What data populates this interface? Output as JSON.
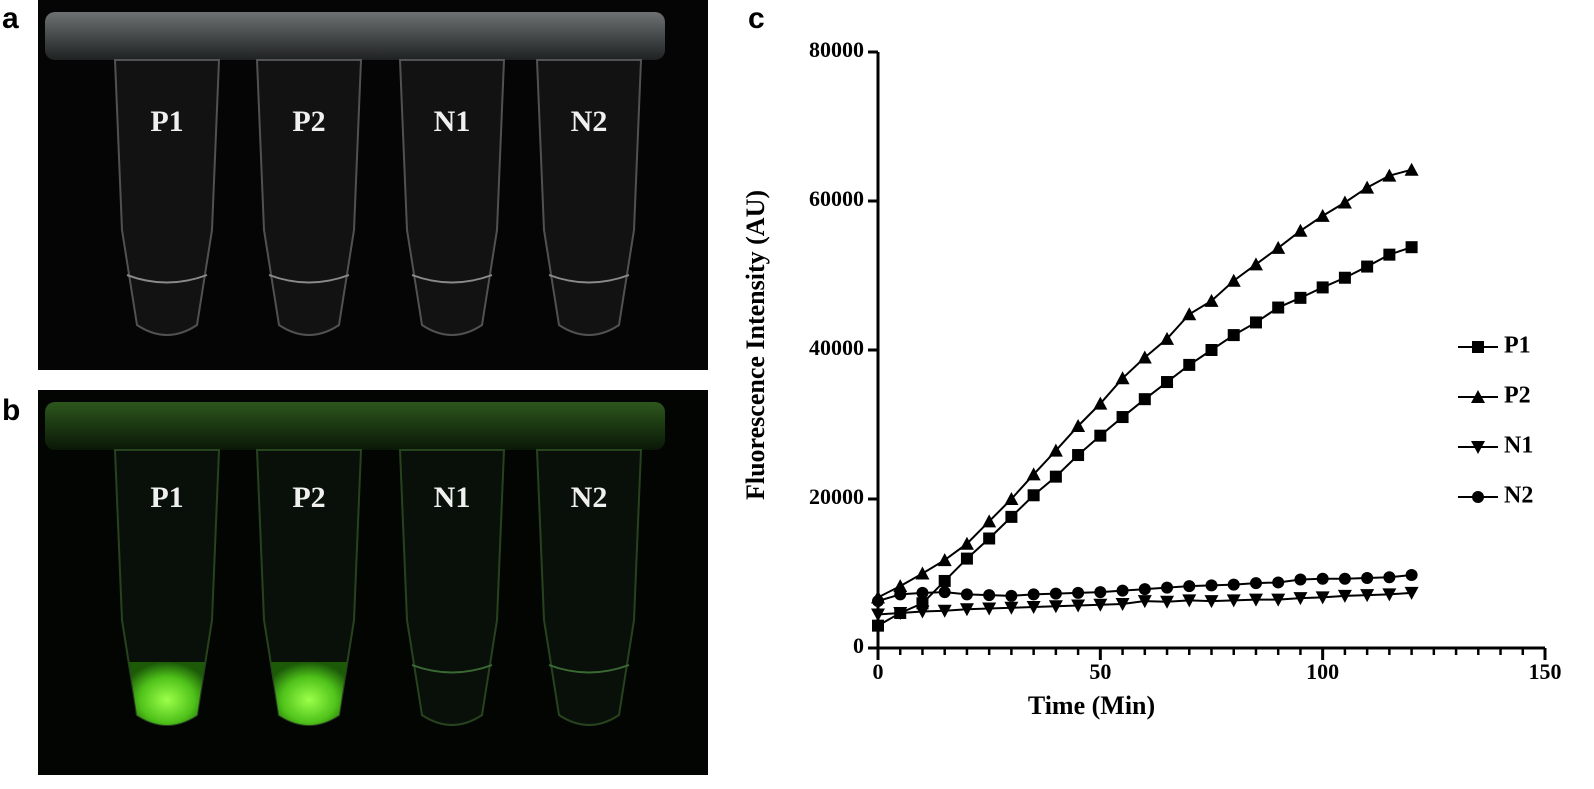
{
  "panels": [
    {
      "label": "a",
      "tubes": [
        "P1",
        "P2",
        "N1",
        "N2"
      ]
    },
    {
      "label": "b",
      "tubes": [
        "P1",
        "P2",
        "N1",
        "N2"
      ]
    }
  ],
  "chart_label": "c",
  "chart_data": {
    "type": "line",
    "xlabel": "Time (Min)",
    "ylabel": "Fluorescence Intensity (AU)",
    "x": [
      0,
      5,
      10,
      15,
      20,
      25,
      30,
      35,
      40,
      45,
      50,
      55,
      60,
      65,
      70,
      75,
      80,
      85,
      90,
      95,
      100,
      105,
      110,
      115,
      120
    ],
    "series": [
      {
        "name": "P1",
        "color": "#000000",
        "marker": "square",
        "values": [
          3000,
          4700,
          6000,
          9000,
          12000,
          14700,
          17600,
          20500,
          23000,
          25900,
          28500,
          31000,
          33400,
          35700,
          38000,
          40000,
          42000,
          43700,
          45700,
          47000,
          48400,
          49700,
          51200,
          52800,
          53800
        ]
      },
      {
        "name": "P2",
        "color": "#000000",
        "marker": "triangle-up",
        "values": [
          6800,
          8300,
          10000,
          11800,
          14000,
          17000,
          20000,
          23300,
          26500,
          29800,
          32800,
          36200,
          39000,
          41500,
          44800,
          46600,
          49300,
          51500,
          53700,
          56000,
          58000,
          59800,
          61800,
          63400,
          64200
        ]
      },
      {
        "name": "N1",
        "color": "#000000",
        "marker": "triangle-down",
        "values": [
          4500,
          4700,
          4900,
          5000,
          5200,
          5300,
          5400,
          5500,
          5600,
          5700,
          5800,
          5900,
          6300,
          6200,
          6400,
          6300,
          6400,
          6500,
          6500,
          6700,
          6800,
          7000,
          7100,
          7200,
          7400
        ]
      },
      {
        "name": "N2",
        "color": "#000000",
        "marker": "circle",
        "values": [
          6300,
          7200,
          7400,
          7500,
          7200,
          7100,
          7000,
          7200,
          7300,
          7400,
          7500,
          7700,
          7900,
          8100,
          8300,
          8400,
          8500,
          8700,
          8800,
          9200,
          9300,
          9300,
          9400,
          9500,
          9800
        ]
      }
    ],
    "xlim": [
      0,
      150
    ],
    "xticks": [
      0,
      50,
      100,
      150
    ],
    "xminorticks": [
      5,
      10,
      15,
      20,
      25,
      30,
      35,
      40,
      45,
      55,
      60,
      65,
      70,
      75,
      80,
      85,
      90,
      95,
      105,
      110,
      115,
      120,
      125,
      130,
      135,
      140,
      145
    ],
    "ylim": [
      0,
      80000
    ],
    "yticks": [
      0,
      20000,
      40000,
      60000,
      80000
    ],
    "grid": false,
    "legend": "right"
  }
}
